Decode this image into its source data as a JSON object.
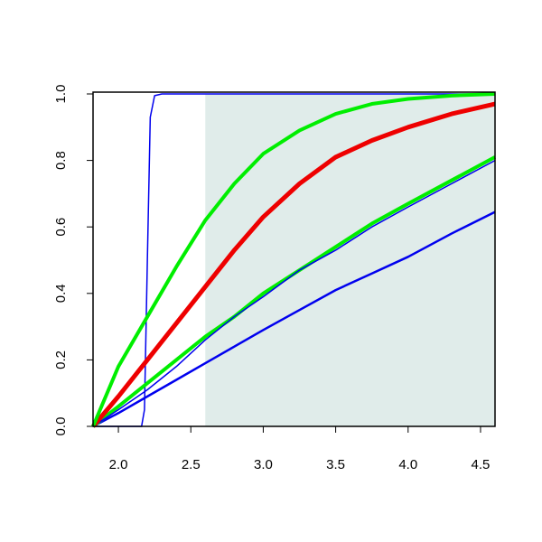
{
  "chart_data": {
    "type": "line",
    "xlim": [
      1.825,
      4.6
    ],
    "ylim": [
      0,
      1
    ],
    "xticks": [
      {
        "value": 2,
        "label": "2.0"
      },
      2.5,
      {
        "value": 3,
        "label": "3.0"
      },
      3.5,
      {
        "value": 4,
        "label": "4.0"
      },
      4.5
    ],
    "yticks": [
      {
        "value": 0,
        "label": "0.0"
      },
      0.2,
      0.4,
      0.6,
      0.8,
      {
        "value": 1,
        "label": "1.0"
      }
    ],
    "shade": {
      "x": [
        2.6,
        4.6
      ],
      "color": "#e0ecea"
    },
    "x": [
      1.825,
      2.0,
      2.2,
      2.4,
      2.6,
      2.8,
      3.0,
      3.25,
      3.5,
      3.75,
      4.0,
      4.3,
      4.6
    ],
    "series": [
      {
        "color": "#0000ee",
        "width": 1.5,
        "x": [
          1.825,
          2.16,
          2.18,
          2.2,
          2.22,
          2.25,
          2.3,
          4.6
        ],
        "values": [
          0,
          0,
          0.05,
          0.5,
          0.93,
          0.995,
          1,
          1
        ]
      },
      {
        "color": "#0000ee",
        "width": 2.5,
        "values": [
          0,
          0.04,
          0.09,
          0.14,
          0.19,
          0.24,
          0.29,
          0.35,
          0.41,
          0.46,
          0.51,
          0.58,
          0.645
        ]
      },
      {
        "color": "#00ee00",
        "width": 4,
        "values": [
          0,
          0.06,
          0.13,
          0.2,
          0.27,
          0.33,
          0.4,
          0.47,
          0.54,
          0.61,
          0.67,
          0.74,
          0.81
        ]
      },
      {
        "color": "#0000ee",
        "width": 1.5,
        "values": [
          0,
          0.05,
          0.11,
          0.18,
          0.26,
          0.33,
          0.39,
          0.47,
          0.53,
          0.6,
          0.66,
          0.73,
          0.8
        ]
      },
      {
        "color": "#ee0000",
        "width": 5,
        "values": [
          0,
          0.09,
          0.2,
          0.31,
          0.42,
          0.53,
          0.63,
          0.73,
          0.81,
          0.86,
          0.9,
          0.94,
          0.97
        ]
      },
      {
        "color": "#00ee00",
        "width": 4,
        "values": [
          0,
          0.18,
          0.33,
          0.48,
          0.62,
          0.73,
          0.82,
          0.89,
          0.94,
          0.97,
          0.985,
          0.995,
          1
        ]
      }
    ]
  }
}
